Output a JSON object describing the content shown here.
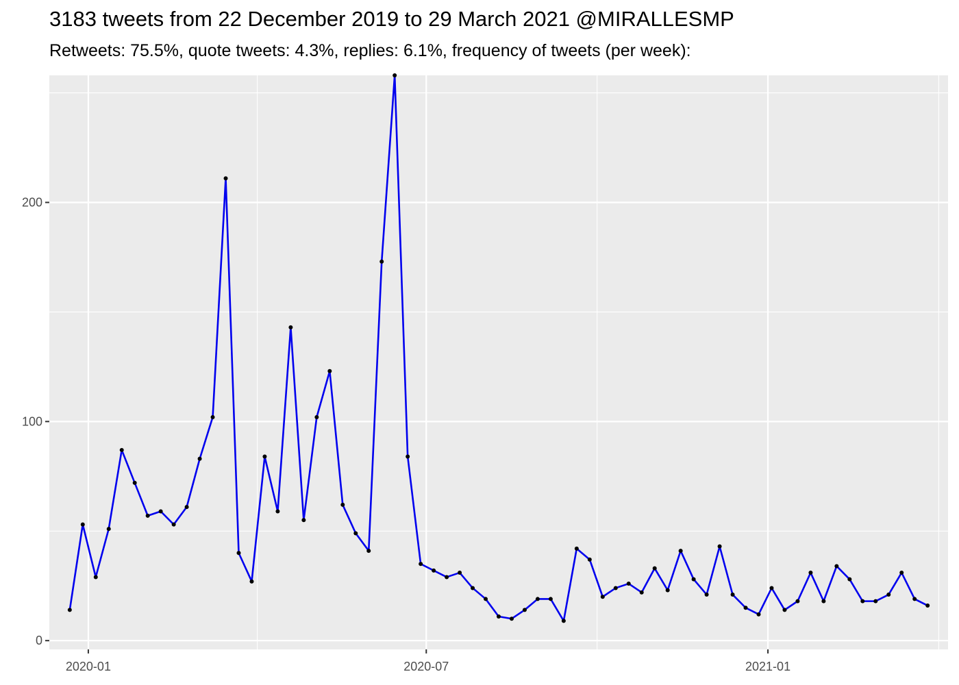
{
  "chart_data": {
    "type": "line",
    "title": "3183 tweets from 22 December 2019 to 29 March 2021 @MIRALLESMP",
    "subtitle": "Retweets: 75.5%, quote tweets: 4.3%, replies: 6.1%, frequency of tweets (per week):",
    "xlabel": "",
    "ylabel": "",
    "x_axis_type": "date",
    "xlim": [
      "2019-12-11",
      "2021-04-08"
    ],
    "ylim": [
      -4,
      258
    ],
    "x_ticks": [
      {
        "date": "2020-01-01",
        "label": "2020-01"
      },
      {
        "date": "2020-07-01",
        "label": "2020-07"
      },
      {
        "date": "2021-01-01",
        "label": "2021-01"
      }
    ],
    "y_ticks": [
      {
        "value": 0,
        "label": "0"
      },
      {
        "value": 100,
        "label": "100"
      },
      {
        "value": 200,
        "label": "200"
      }
    ],
    "grid": true,
    "line_color": "#0000ee",
    "point_color": "#000000",
    "panel_color": "#ebebeb",
    "series": [
      {
        "x": [
          "2019-12-22",
          "2019-12-29",
          "2020-01-05",
          "2020-01-12",
          "2020-01-19",
          "2020-01-26",
          "2020-02-02",
          "2020-02-09",
          "2020-02-16",
          "2020-02-23",
          "2020-03-01",
          "2020-03-08",
          "2020-03-15",
          "2020-03-22",
          "2020-03-29",
          "2020-04-05",
          "2020-04-12",
          "2020-04-19",
          "2020-04-26",
          "2020-05-03",
          "2020-05-10",
          "2020-05-17",
          "2020-05-24",
          "2020-05-31",
          "2020-06-07",
          "2020-06-14",
          "2020-06-21",
          "2020-06-28",
          "2020-07-05",
          "2020-07-12",
          "2020-07-19",
          "2020-07-26",
          "2020-08-02",
          "2020-08-09",
          "2020-08-16",
          "2020-08-23",
          "2020-08-30",
          "2020-09-06",
          "2020-09-13",
          "2020-09-20",
          "2020-09-27",
          "2020-10-04",
          "2020-10-11",
          "2020-10-18",
          "2020-10-25",
          "2020-11-01",
          "2020-11-08",
          "2020-11-15",
          "2020-11-22",
          "2020-11-29",
          "2020-12-06",
          "2020-12-13",
          "2020-12-20",
          "2020-12-27",
          "2021-01-03",
          "2021-01-10",
          "2021-01-17",
          "2021-01-24",
          "2021-01-31",
          "2021-02-07",
          "2021-02-14",
          "2021-02-21",
          "2021-02-28",
          "2021-03-07",
          "2021-03-14",
          "2021-03-21",
          "2021-03-28"
        ],
        "values": [
          14,
          53,
          29,
          51,
          87,
          72,
          57,
          59,
          53,
          61,
          83,
          102,
          211,
          40,
          27,
          84,
          59,
          143,
          55,
          102,
          123,
          62,
          49,
          41,
          173,
          258,
          84,
          35,
          32,
          29,
          31,
          24,
          19,
          11,
          10,
          14,
          19,
          19,
          9,
          42,
          37,
          20,
          24,
          26,
          22,
          33,
          23,
          41,
          28,
          21,
          43,
          21,
          15,
          12,
          24,
          14,
          18,
          31,
          18,
          34,
          28,
          18,
          18,
          21,
          31,
          19,
          16
        ]
      }
    ]
  }
}
